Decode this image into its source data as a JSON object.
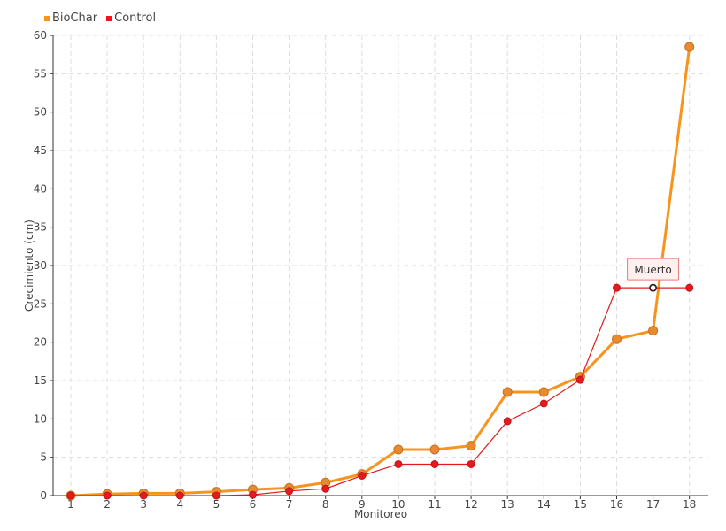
{
  "legend": {
    "items": [
      {
        "label": "BioChar",
        "color": "#f7941d"
      },
      {
        "label": "Control",
        "color": "#e41a1c"
      }
    ]
  },
  "chart_data": {
    "type": "line",
    "categories": [
      "1",
      "2",
      "3",
      "4",
      "5",
      "6",
      "7",
      "8",
      "9",
      "10",
      "11",
      "12",
      "13",
      "14",
      "15",
      "16",
      "17",
      "18"
    ],
    "xlabel": "Monitoreo",
    "ylabel": "Crecimiento (cm)",
    "ylim": [
      0,
      60
    ],
    "yticks": [
      0,
      5,
      10,
      15,
      20,
      25,
      30,
      35,
      40,
      45,
      50,
      55,
      60
    ],
    "grid": true,
    "legend_position": "top-left",
    "series": [
      {
        "name": "BioChar",
        "color": "#f7941d",
        "values": [
          0,
          0.2,
          0.3,
          0.3,
          0.5,
          0.8,
          1.0,
          1.7,
          2.8,
          6.0,
          6.0,
          6.5,
          13.5,
          13.5,
          15.5,
          20.4,
          21.5,
          58.5
        ]
      },
      {
        "name": "Control",
        "color": "#e41a1c",
        "values": [
          0,
          0,
          0,
          0,
          0,
          0.1,
          0.6,
          0.9,
          2.6,
          4.1,
          4.1,
          4.1,
          9.7,
          12.0,
          15.1,
          27.1,
          27.1,
          27.1
        ]
      }
    ],
    "annotation": {
      "text": "Muerto",
      "category": "17",
      "value": 27.1
    }
  }
}
